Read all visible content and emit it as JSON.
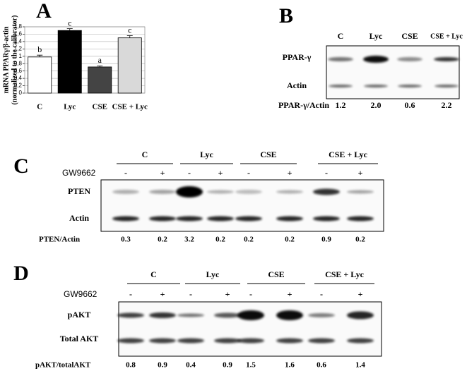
{
  "chart_data": {
    "type": "bar",
    "panel": "A",
    "ylabel": [
      "mRNA PPARγ/β-actin",
      "(normalized to the calibrator)"
    ],
    "categories": [
      "C",
      "Lyc",
      "CSE",
      "CSE + Lyc"
    ],
    "values": [
      0.98,
      1.7,
      0.71,
      1.5
    ],
    "errors": [
      0.05,
      0.05,
      0.03,
      0.06
    ],
    "annotations": [
      "b",
      "c",
      "a",
      "c"
    ],
    "colors": [
      "#ffffff",
      "#000000",
      "#444444",
      "#d9d9d9"
    ],
    "ylim": [
      0,
      1.8
    ],
    "yticks": [
      0,
      {
        "value": 0.2,
        "label": "0,2"
      },
      {
        "value": 0.4,
        "label": "0,4"
      },
      {
        "value": 0.6,
        "label": "0,6"
      },
      {
        "value": 0.8,
        "label": "0,8"
      },
      1,
      {
        "value": 1.2,
        "label": "1,2"
      },
      {
        "value": 1.4,
        "label": "1,4"
      },
      {
        "value": 1.6,
        "label": "1,6"
      },
      {
        "value": 1.8,
        "label": "1,8"
      }
    ],
    "grid": true
  },
  "panel_b": {
    "label": "B",
    "lanes": [
      "C",
      "Lyc",
      "CSE",
      "CSE + Lyc"
    ],
    "rows": [
      "PPAR-γ",
      "Actin"
    ],
    "ratio_label": "PPAR-γ/Actin",
    "ratios": [
      "1.2",
      "2.0",
      "0.6",
      "2.2"
    ]
  },
  "panel_c": {
    "label": "C",
    "groups": [
      "C",
      "Lyc",
      "CSE",
      "CSE + Lyc"
    ],
    "treatment": "GW9662",
    "signs": [
      "-",
      "+"
    ],
    "rows": [
      "PTEN",
      "Actin"
    ],
    "ratio_label": "PTEN/Actin",
    "ratios": [
      "0.3",
      "0.2",
      "3.2",
      "0.2",
      "0.2",
      "0.2",
      "0.9",
      "0.2"
    ]
  },
  "panel_d": {
    "label": "D",
    "groups": [
      "C",
      "Lyc",
      "CSE",
      "CSE + Lyc"
    ],
    "treatment": "GW9662",
    "signs": [
      "-",
      "+"
    ],
    "rows": [
      "pAKT",
      "Total AKT"
    ],
    "ratio_label": "pAKT/totalAKT",
    "ratios": [
      "0.8",
      "0.9",
      "0.4",
      "0.9",
      "1.5",
      "1.6",
      "0.6",
      "1.4"
    ]
  }
}
